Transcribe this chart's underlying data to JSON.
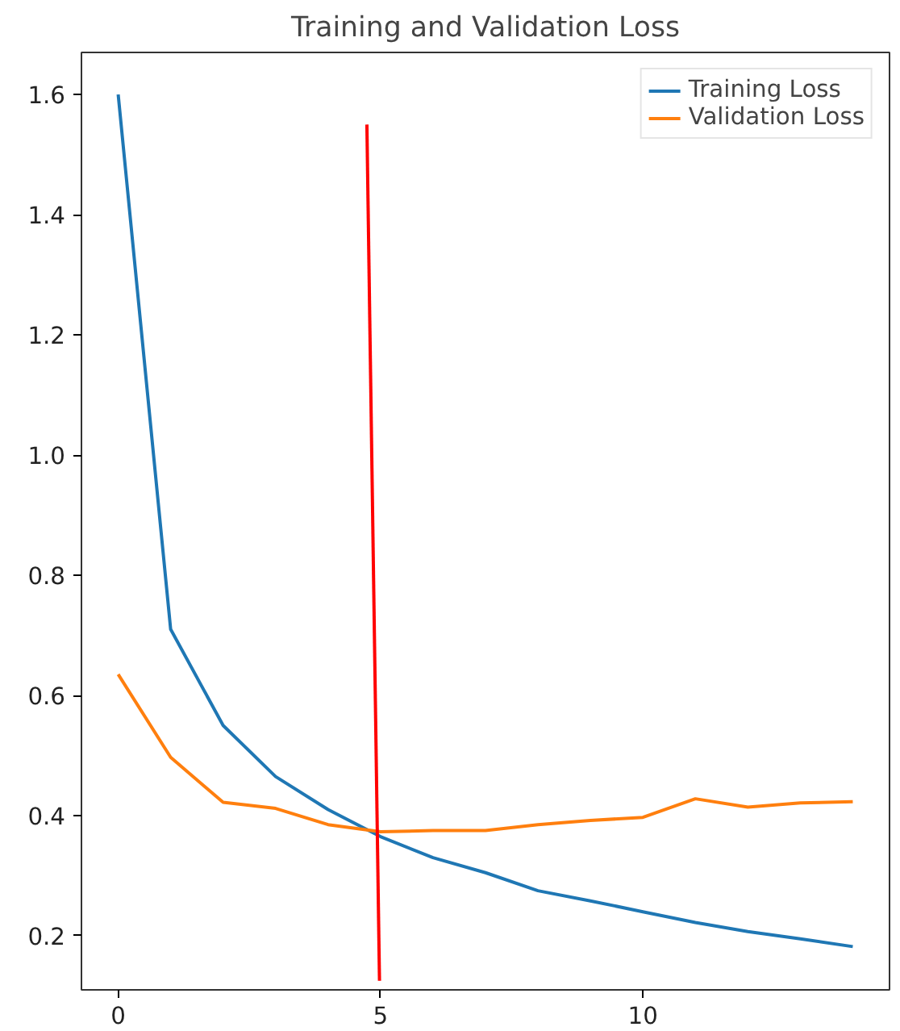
{
  "chart_data": {
    "type": "line",
    "title": "Training and Validation Loss",
    "x": [
      0,
      1,
      2,
      3,
      4,
      5,
      6,
      7,
      8,
      9,
      10,
      11,
      12,
      13,
      14
    ],
    "xlim": [
      -0.7,
      14.7
    ],
    "xticks": [
      0,
      5,
      10
    ],
    "ylim": [
      0.11,
      1.67
    ],
    "yticks": [
      0.2,
      0.4,
      0.6,
      0.8,
      {
        "value": 1.0,
        "label": "1.0"
      },
      1.2,
      1.4,
      1.6
    ],
    "grid": false,
    "legend": "top right",
    "series": [
      {
        "name": "Training Loss",
        "color": "#1f77b4",
        "values": [
          1.6,
          0.71,
          0.55,
          0.465,
          0.41,
          0.365,
          0.33,
          0.305,
          0.275,
          0.258,
          0.24,
          0.222,
          0.207,
          0.195,
          0.182
        ]
      },
      {
        "name": "Validation Loss",
        "color": "#ff7f0e",
        "values": [
          0.635,
          0.497,
          0.422,
          0.412,
          0.385,
          0.373,
          0.375,
          0.375,
          0.385,
          0.392,
          0.397,
          0.428,
          0.414,
          0.421,
          0.423
        ]
      },
      {
        "color": "#ff0000",
        "x": [
          4.74,
          4.98
        ],
        "values": [
          1.55,
          0.125
        ]
      }
    ]
  }
}
